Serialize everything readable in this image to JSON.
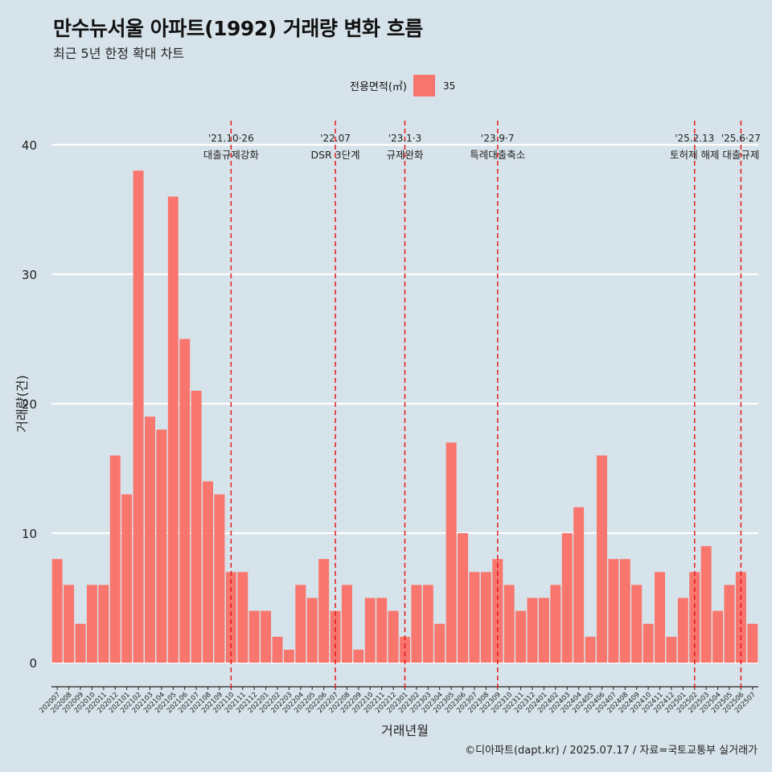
{
  "title": "만수뉴서울 아파트(1992) 거래량 변화 흐름",
  "subtitle": "최근 5년 한정 확대 차트",
  "legend": {
    "title": "전용면적(㎡)",
    "items": [
      "35"
    ]
  },
  "caption": "©디아파트(dapt.kr) / 2025.07.17 / 자료=국토교통부 실거래가",
  "colors": {
    "bar": "#f8766d",
    "background": "#d7e3ea",
    "grid": "#ffffff",
    "vline": "#e31a1c"
  },
  "chart_data": {
    "type": "bar",
    "xlabel": "거래년월",
    "ylabel": "거래량(건)",
    "ylim": [
      0,
      42
    ],
    "yticks": [
      0,
      10,
      20,
      30,
      40
    ],
    "grid": true,
    "legend_position": "top",
    "categories": [
      "202007",
      "202008",
      "202009",
      "202010",
      "202011",
      "202012",
      "202101",
      "202102",
      "202103",
      "202104",
      "202105",
      "202106",
      "202107",
      "202108",
      "202109",
      "202110",
      "202111",
      "202112",
      "202201",
      "202202",
      "202203",
      "202204",
      "202205",
      "202206",
      "202207",
      "202208",
      "202209",
      "202210",
      "202211",
      "202212",
      "202301",
      "202302",
      "202303",
      "202304",
      "202305",
      "202306",
      "202307",
      "202308",
      "202309",
      "202310",
      "202311",
      "202312",
      "202401",
      "202402",
      "202403",
      "202404",
      "202405",
      "202406",
      "202407",
      "202408",
      "202409",
      "202410",
      "202411",
      "202412",
      "202501",
      "202502",
      "202503",
      "202504",
      "202505",
      "202506",
      "202507"
    ],
    "series": [
      {
        "name": "35",
        "values": [
          8,
          6,
          3,
          6,
          6,
          16,
          13,
          38,
          19,
          18,
          36,
          25,
          21,
          14,
          13,
          7,
          7,
          4,
          4,
          2,
          1,
          6,
          5,
          8,
          4,
          6,
          1,
          5,
          5,
          4,
          2,
          6,
          6,
          3,
          17,
          10,
          7,
          7,
          8,
          6,
          4,
          5,
          5,
          6,
          10,
          12,
          2,
          16,
          8,
          8,
          6,
          3,
          7,
          2,
          5,
          7,
          9,
          4,
          6,
          7,
          3
        ]
      }
    ],
    "annotations": [
      {
        "category": "202110",
        "date": "'21.10·26",
        "label": "대출규제강화"
      },
      {
        "category": "202207",
        "date": "'22.07",
        "label": "DSR 3단계"
      },
      {
        "category": "202301",
        "date": "'23.1·3",
        "label": "규제완화"
      },
      {
        "category": "202309",
        "date": "'23.9·7",
        "label": "특례대출축소"
      },
      {
        "category": "202502",
        "date": "'25.2.13",
        "label": "토허제 해제"
      },
      {
        "category": "202506",
        "date": "'25.6·27",
        "label": "대출규제"
      }
    ]
  }
}
